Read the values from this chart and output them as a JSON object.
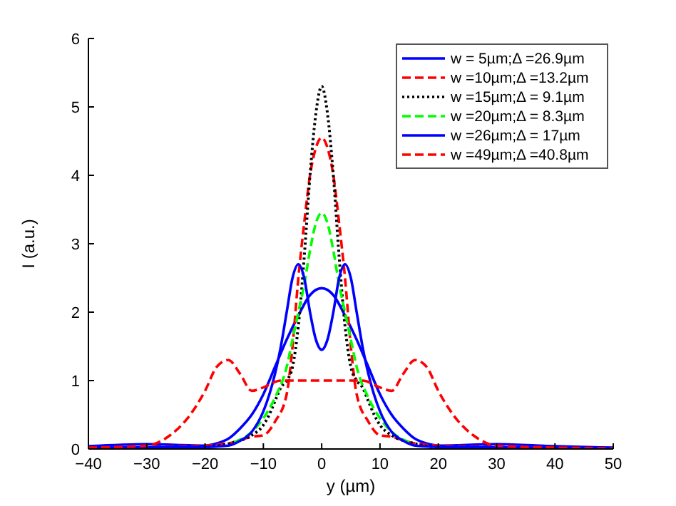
{
  "chart_data": {
    "type": "line",
    "xlabel": "y (µm)",
    "ylabel": "I (a.u.)",
    "xlim": [
      -40,
      50
    ],
    "ylim": [
      0,
      6
    ],
    "xticks": [
      -40,
      -30,
      -20,
      -10,
      0,
      10,
      20,
      30,
      40,
      50
    ],
    "yticks": [
      0,
      1,
      2,
      3,
      4,
      5,
      6
    ],
    "grid": false,
    "legend": "top right",
    "series": [
      {
        "name": "w = 5µm;Δ =26.9µm",
        "color": "#0000ff",
        "line_style": "solid",
        "x": [
          -40,
          -30,
          -20,
          -18,
          -16,
          -14,
          -12,
          -10,
          -8,
          -6,
          -4,
          -2,
          0,
          2,
          4,
          6,
          8,
          10,
          12,
          14,
          16,
          18,
          20,
          30,
          40,
          50
        ],
        "values": [
          0.04,
          0.07,
          0.05,
          0.08,
          0.15,
          0.3,
          0.5,
          0.8,
          1.2,
          1.6,
          1.95,
          2.25,
          2.35,
          2.25,
          1.95,
          1.6,
          1.2,
          0.8,
          0.5,
          0.3,
          0.15,
          0.08,
          0.05,
          0.07,
          0.04,
          0.02
        ]
      },
      {
        "name": "w =10µm;Δ =13.2µm",
        "color": "#ff0000",
        "line_style": "dashed",
        "x": [
          -40,
          -30,
          -20,
          -15,
          -12,
          -10,
          -8,
          -6,
          -5,
          -4,
          -3,
          -2,
          -1,
          0,
          1,
          2,
          3,
          4,
          5,
          6,
          8,
          10,
          12,
          15,
          20,
          30,
          40,
          50
        ],
        "values": [
          0.02,
          0.03,
          0.05,
          0.1,
          0.18,
          0.2,
          0.4,
          0.8,
          1.5,
          2.5,
          3.3,
          4.0,
          4.4,
          4.55,
          4.4,
          4.0,
          3.3,
          2.5,
          1.5,
          0.8,
          0.4,
          0.2,
          0.18,
          0.1,
          0.05,
          0.03,
          0.02,
          0.01
        ]
      },
      {
        "name": "w =15µm;Δ = 9.1µm",
        "color": "#000000",
        "line_style": "dotted",
        "x": [
          -40,
          -20,
          -15,
          -12,
          -10,
          -9,
          -8,
          -7,
          -6,
          -5,
          -4,
          -3,
          -2,
          -1,
          0,
          1,
          2,
          3,
          4,
          5,
          6,
          7,
          8,
          9,
          10,
          12,
          15,
          20,
          40,
          50
        ],
        "values": [
          0.01,
          0.03,
          0.1,
          0.2,
          0.35,
          0.5,
          0.7,
          0.9,
          1.0,
          1.2,
          1.8,
          2.8,
          4.0,
          4.9,
          5.3,
          4.9,
          4.0,
          2.8,
          1.8,
          1.2,
          1.0,
          0.9,
          0.7,
          0.5,
          0.35,
          0.2,
          0.1,
          0.03,
          0.01,
          0.01
        ]
      },
      {
        "name": "w =20µm;Δ = 8.3µm",
        "color": "#00ff00",
        "line_style": "dashed",
        "x": [
          -15,
          -12,
          -10,
          -8,
          -6,
          -5,
          -4,
          -3,
          -2,
          -1,
          0,
          1,
          2,
          3,
          4,
          5,
          6,
          8,
          10,
          12,
          15
        ],
        "values": [
          0.1,
          0.25,
          0.45,
          0.75,
          1.2,
          1.6,
          2.0,
          2.4,
          2.9,
          3.3,
          3.45,
          3.3,
          2.9,
          2.4,
          2.0,
          1.6,
          1.2,
          0.75,
          0.45,
          0.25,
          0.1
        ]
      },
      {
        "name": "w =26µm;Δ =  17µm",
        "color": "#0000ff",
        "line_style": "solid",
        "x": [
          -40,
          -20,
          -16,
          -14,
          -12,
          -10,
          -8,
          -7,
          -6,
          -5,
          -4,
          -3,
          -2,
          -1,
          0,
          1,
          2,
          3,
          4,
          5,
          6,
          7,
          8,
          10,
          12,
          14,
          16,
          20,
          40,
          50
        ],
        "values": [
          0.02,
          0.03,
          0.05,
          0.12,
          0.25,
          0.55,
          1.1,
          1.5,
          2.0,
          2.5,
          2.7,
          2.5,
          2.0,
          1.6,
          1.45,
          1.6,
          2.0,
          2.5,
          2.7,
          2.5,
          2.0,
          1.5,
          1.1,
          0.55,
          0.25,
          0.12,
          0.05,
          0.03,
          0.02,
          0.01
        ]
      },
      {
        "name": "w =49µm;Δ =40.8µm",
        "color": "#ff0000",
        "line_style": "dashed",
        "x": [
          -40,
          -30,
          -26,
          -23,
          -20,
          -18,
          -16,
          -14,
          -12,
          -10,
          -7,
          0,
          7,
          10,
          12,
          14,
          16,
          18,
          20,
          23,
          26,
          30,
          40,
          50
        ],
        "values": [
          0.02,
          0.05,
          0.2,
          0.45,
          0.85,
          1.2,
          1.3,
          1.1,
          0.85,
          0.9,
          1.0,
          1.0,
          1.0,
          0.9,
          0.85,
          1.1,
          1.3,
          1.2,
          0.85,
          0.45,
          0.2,
          0.05,
          0.02,
          0.01
        ]
      }
    ]
  }
}
